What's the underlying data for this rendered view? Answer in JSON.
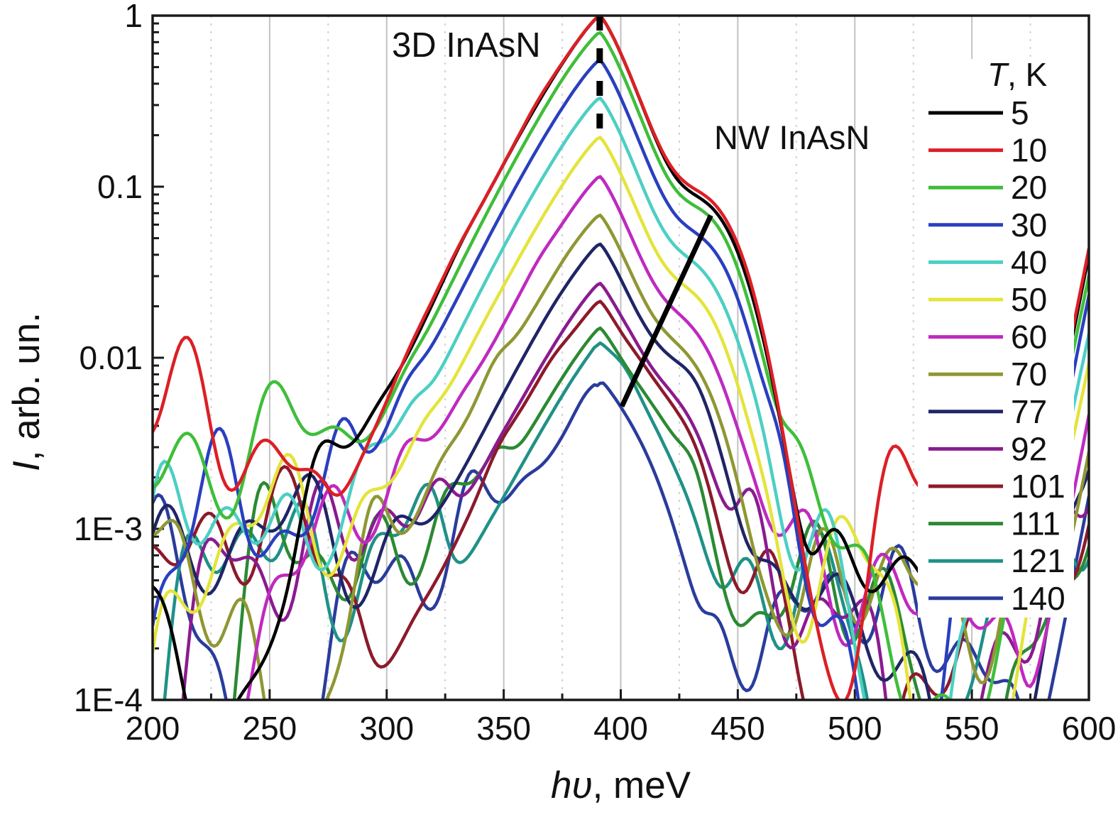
{
  "chart_data": {
    "type": "line",
    "title": "",
    "xlabel": "hυ, meV",
    "xlabel_italic": "hυ",
    "xlabel_rest": ", meV",
    "ylabel": "I, arb. un.",
    "ylabel_italic": "I",
    "ylabel_rest": ", arb. un.",
    "x_axis": {
      "min": 200,
      "max": 600,
      "major_ticks": [
        200,
        250,
        300,
        350,
        400,
        450,
        500,
        550,
        600
      ],
      "major_tick_labels": [
        "200",
        "250",
        "300",
        "350",
        "400",
        "450",
        "500",
        "550",
        "600"
      ],
      "minor_ticks": [
        225,
        275,
        325,
        375,
        425,
        475,
        525,
        575
      ],
      "grid_major": true,
      "grid_minor_dotted": true
    },
    "y_axis": {
      "scale": "log",
      "min": 0.0001,
      "max": 1,
      "major_ticks": [
        {
          "label": "1",
          "value": 1
        },
        {
          "label": "0.1",
          "value": 0.1
        },
        {
          "label": "0.01",
          "value": 0.01
        },
        {
          "label": "1E-3",
          "value": 0.001
        },
        {
          "label": "1E-4",
          "value": 0.0001
        }
      ],
      "minor_tick_mantissas": [
        2,
        3,
        4,
        5,
        6,
        7,
        8,
        9
      ]
    },
    "legend": {
      "title": "T, K",
      "title_italic": "T",
      "title_rest": ", K",
      "position": "right-inside"
    },
    "annotations": [
      {
        "text": "3D InAsN",
        "near_mev": 360,
        "note": "labels main peak at ~391 meV"
      },
      {
        "text": "NW InAsN",
        "near_mev": 445,
        "note": "labels high-energy shoulder ~437 meV"
      }
    ],
    "markers": {
      "peak_dash_line": {
        "x_mev": 391,
        "i_top": 1.0,
        "i_bottom": 0.215,
        "style": "dashed-black-vertical"
      },
      "shoulder_guide_line": {
        "x1_mev": 400.5,
        "i1": 0.0052,
        "x2_mev": 438.5,
        "i2": 0.068,
        "style": "solid-black"
      }
    },
    "line_shape": {
      "left_width": 46,
      "left_pow": 1.2,
      "right_width": 30,
      "right_pow": 1.25,
      "shoulder_sigma": 13
    },
    "series": [
      {
        "label": "5",
        "color": "#000000",
        "peak": {
          "x": 391,
          "y": 1.0
        },
        "shoulder": {
          "x": 437,
          "y": 0.06
        },
        "noise_floor": 0.0012,
        "edge_600": 0.04,
        "seed": 3
      },
      {
        "label": "10",
        "color": "#DC1F26",
        "peak": {
          "x": 391,
          "y": 1.0
        },
        "shoulder": {
          "x": 437,
          "y": 0.066
        },
        "noise_floor": 0.0042,
        "edge_600": 0.042,
        "seed": 7
      },
      {
        "label": "20",
        "color": "#3FBE3A",
        "peak": {
          "x": 391,
          "y": 0.8
        },
        "shoulder": {
          "x": 436,
          "y": 0.05
        },
        "noise_floor": 0.0026,
        "edge_600": 0.028,
        "seed": 11
      },
      {
        "label": "30",
        "color": "#2A3FBF",
        "peak": {
          "x": 391,
          "y": 0.55
        },
        "shoulder": {
          "x": 435,
          "y": 0.036
        },
        "noise_floor": 0.0013,
        "edge_600": 0.021,
        "seed": 17
      },
      {
        "label": "40",
        "color": "#4CCFC4",
        "peak": {
          "x": 391,
          "y": 0.33
        },
        "shoulder": {
          "x": 433,
          "y": 0.024
        },
        "noise_floor": 0.001,
        "edge_600": 0.013,
        "seed": 23
      },
      {
        "label": "50",
        "color": "#E4E43C",
        "peak": {
          "x": 391,
          "y": 0.195
        },
        "shoulder": {
          "x": 431,
          "y": 0.016
        },
        "noise_floor": 0.0009,
        "edge_600": 0.008,
        "seed": 29
      },
      {
        "label": "60",
        "color": "#BF2ABF",
        "peak": {
          "x": 391,
          "y": 0.115
        },
        "shoulder": {
          "x": 429,
          "y": 0.0105
        },
        "noise_floor": 0.0009,
        "edge_600": 0.0046,
        "seed": 31
      },
      {
        "label": "70",
        "color": "#8F9733",
        "peak": {
          "x": 391,
          "y": 0.068
        },
        "shoulder": {
          "x": 427,
          "y": 0.0072
        },
        "noise_floor": 0.0008,
        "edge_600": 0.0028,
        "seed": 37
      },
      {
        "label": "77",
        "color": "#1F2566",
        "peak": {
          "x": 391,
          "y": 0.046
        },
        "shoulder": {
          "x": 424,
          "y": 0.0052
        },
        "noise_floor": 0.0008,
        "edge_600": 0.0017,
        "seed": 41
      },
      {
        "label": "92",
        "color": "#8A1B8F",
        "peak": {
          "x": 391,
          "y": 0.027
        },
        "shoulder": {
          "x": 421,
          "y": 0.0035
        },
        "noise_floor": 0.0008,
        "edge_600": 0.0009,
        "seed": 43
      },
      {
        "label": "101",
        "color": "#8C1A2B",
        "peak": {
          "x": 391,
          "y": 0.021
        },
        "shoulder": {
          "x": 418,
          "y": 0.0029
        },
        "noise_floor": 0.0008,
        "edge_600": 0.0007,
        "seed": 47
      },
      {
        "label": "111",
        "color": "#2B8A33",
        "peak": {
          "x": 391,
          "y": 0.0145
        },
        "shoulder": {
          "x": 414,
          "y": 0.0022
        },
        "noise_floor": 0.0007,
        "edge_600": 0.0006,
        "seed": 53
      },
      {
        "label": "121",
        "color": "#1F9187",
        "peak": {
          "x": 391,
          "y": 0.0112
        },
        "shoulder": {
          "x": 410,
          "y": 0.0018
        },
        "noise_floor": 0.0007,
        "edge_600": 0.0005,
        "seed": 59
      },
      {
        "label": "140",
        "color": "#2A3C9C",
        "peak": {
          "x": 392,
          "y": 0.0062
        },
        "shoulder": {
          "x": 404,
          "y": 0.0012
        },
        "noise_floor": 0.0006,
        "edge_600": 0.0015,
        "seed": 61
      }
    ]
  },
  "style_colors": {
    "axis": "#1a1a1a",
    "grid_major": "#c2c2c2",
    "grid_minor": "#d2d2d2",
    "text": "#111111",
    "legend_bg": "#ffffff"
  }
}
